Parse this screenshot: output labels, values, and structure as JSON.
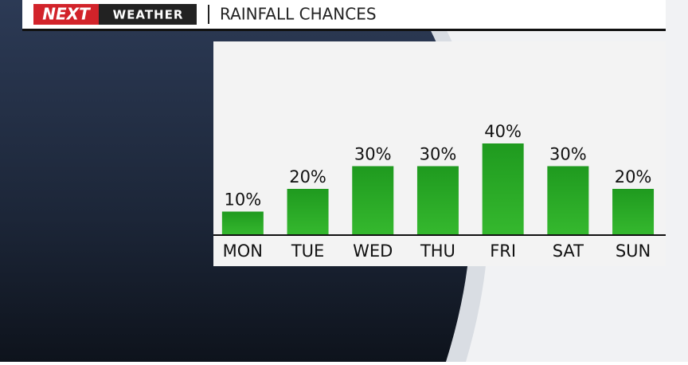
{
  "header": {
    "brand": "NEXT",
    "brand_sub": "WEATHER"
  },
  "chart_data": {
    "type": "bar",
    "title": "RAINFALL CHANCES",
    "categories": [
      "MON",
      "TUE",
      "WED",
      "THU",
      "FRI",
      "SAT",
      "SUN"
    ],
    "values": [
      10,
      20,
      30,
      30,
      40,
      30,
      20
    ],
    "value_labels": [
      "10%",
      "20%",
      "30%",
      "30%",
      "40%",
      "30%",
      "20%"
    ],
    "color": "#2ea02a"
  }
}
